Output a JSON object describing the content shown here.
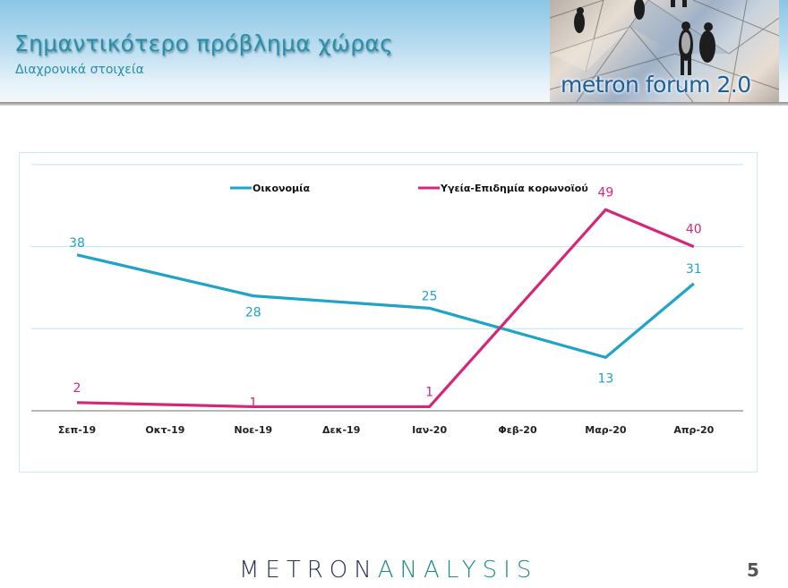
{
  "header": {
    "title": "Σημαντικότερο πρόβλημα χώρας",
    "subtitle": "Διαχρονικά στοιχεία",
    "logo_text": "metron forum 2.0"
  },
  "footer": {
    "brand_part1": "METRON",
    "brand_part2": "ANALYSIS",
    "page_number": "5"
  },
  "colors": {
    "economy": "#1fa3c8",
    "health": "#d6267a",
    "title": "#2a8fa6",
    "gridline": "#bfe3ee",
    "axis": "#8a8a8a"
  },
  "chart_data": {
    "type": "line",
    "title": "",
    "xlabel": "",
    "ylabel": "",
    "categories": [
      "Σεπ-19",
      "Οκτ-19",
      "Νοε-19",
      "Δεκ-19",
      "Ιαν-20",
      "Φεβ-20",
      "Μαρ-20",
      "Απρ-20"
    ],
    "series": [
      {
        "name": "Οικονομία",
        "color": "#1fa3c8",
        "values": [
          38,
          null,
          28,
          null,
          25,
          null,
          13,
          31
        ]
      },
      {
        "name": "Υγεία-Επιδημία κορωνοϊού",
        "color": "#d6267a",
        "values": [
          2,
          null,
          1,
          null,
          1,
          null,
          49,
          40
        ]
      }
    ],
    "ylim": [
      0,
      60
    ],
    "gridlines": [
      0,
      20,
      40,
      60
    ],
    "grid": true,
    "legend_position": "top",
    "y_axis_visible": false,
    "data_labels": true
  }
}
